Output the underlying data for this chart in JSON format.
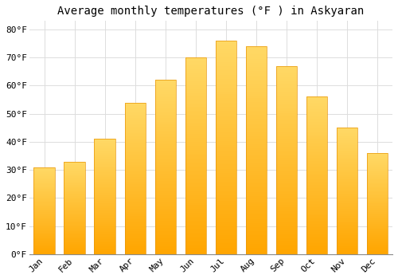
{
  "title": "Average monthly temperatures (°F ) in Askyaran",
  "months": [
    "Jan",
    "Feb",
    "Mar",
    "Apr",
    "May",
    "Jun",
    "Jul",
    "Aug",
    "Sep",
    "Oct",
    "Nov",
    "Dec"
  ],
  "values": [
    31,
    33,
    41,
    54,
    62,
    70,
    76,
    74,
    67,
    56,
    45,
    36
  ],
  "bar_color_bottom": "#FFA500",
  "bar_color_top": "#FFD966",
  "background_color": "#FFFFFF",
  "grid_color": "#DDDDDD",
  "ylim": [
    0,
    83
  ],
  "yticks": [
    0,
    10,
    20,
    30,
    40,
    50,
    60,
    70,
    80
  ],
  "ytick_labels": [
    "0°F",
    "10°F",
    "20°F",
    "30°F",
    "40°F",
    "50°F",
    "60°F",
    "70°F",
    "80°F"
  ],
  "title_fontsize": 10,
  "tick_fontsize": 8,
  "font_family": "monospace",
  "bar_width": 0.7
}
